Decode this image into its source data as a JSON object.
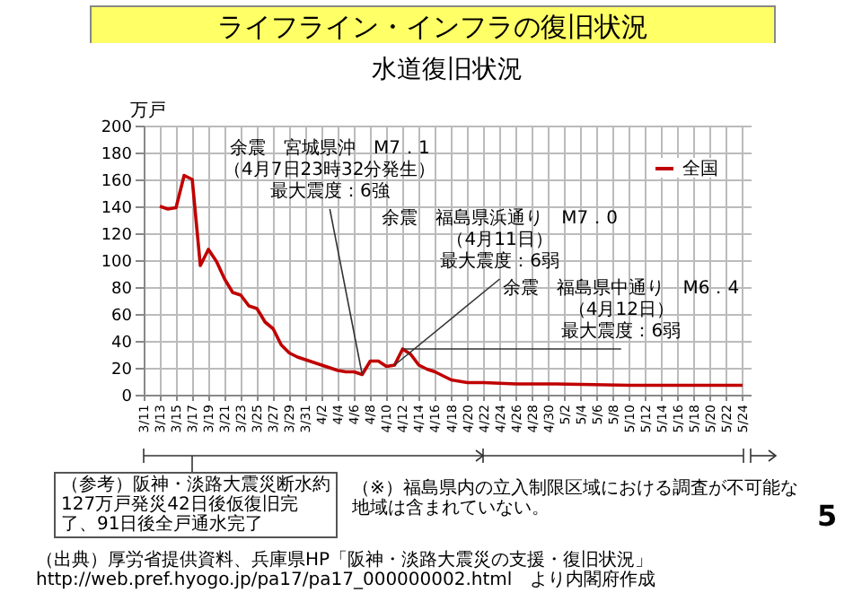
{
  "chart_data": {
    "type": "line",
    "title": "ライフライン・インフラの復旧状況",
    "subtitle": "水道復旧状況",
    "ylabel": "万戸",
    "x": [
      "--03-13",
      "--03-14",
      "--03-15",
      "--03-16",
      "--03-17",
      "--03-18",
      "--03-19",
      "--03-20",
      "--03-21",
      "--03-22",
      "--03-23",
      "--03-24",
      "--03-25",
      "--03-26",
      "--03-27",
      "--03-28",
      "--03-29",
      "--03-30",
      "--03-31",
      "--04-01",
      "--04-02",
      "--04-03",
      "--04-04",
      "--04-05",
      "--04-06",
      "--04-07",
      "--04-08",
      "--04-09",
      "--04-10",
      "--04-11",
      "--04-12",
      "--04-13",
      "--04-14",
      "--04-15",
      "--04-16",
      "--04-17",
      "--04-18",
      "--04-19",
      "--04-20",
      "--04-22",
      "--04-26",
      "--05-01",
      "--05-10",
      "--05-24"
    ],
    "series": [
      {
        "name": "全国",
        "color": "#c00000",
        "values": [
          140,
          138,
          139,
          163,
          160,
          96,
          108,
          99,
          86,
          76,
          74,
          66,
          64,
          54,
          49,
          37,
          31,
          28,
          26,
          24,
          22,
          20,
          18,
          17,
          17,
          15,
          25,
          25,
          21,
          22,
          34,
          30,
          22,
          19,
          17,
          14,
          11,
          10,
          9,
          9,
          8,
          8,
          7,
          7
        ]
      }
    ],
    "xlim": [
      "--03-11",
      "--05-25"
    ],
    "xticks": [
      {
        "value": "--03-11",
        "label": "3/11"
      },
      {
        "value": "--03-13",
        "label": "3/13"
      },
      {
        "value": "--03-15",
        "label": "3/15"
      },
      {
        "value": "--03-17",
        "label": "3/17"
      },
      {
        "value": "--03-19",
        "label": "3/19"
      },
      {
        "value": "--03-21",
        "label": "3/21"
      },
      {
        "value": "--03-23",
        "label": "3/23"
      },
      {
        "value": "--03-25",
        "label": "3/25"
      },
      {
        "value": "--03-27",
        "label": "3/27"
      },
      {
        "value": "--03-29",
        "label": "3/29"
      },
      {
        "value": "--03-31",
        "label": "3/31"
      },
      {
        "value": "--04-02",
        "label": "4/2"
      },
      {
        "value": "--04-04",
        "label": "4/4"
      },
      {
        "value": "--04-06",
        "label": "4/6"
      },
      {
        "value": "--04-08",
        "label": "4/8"
      },
      {
        "value": "--04-10",
        "label": "4/10"
      },
      {
        "value": "--04-12",
        "label": "4/12"
      },
      {
        "value": "--04-14",
        "label": "4/14"
      },
      {
        "value": "--04-16",
        "label": "4/16"
      },
      {
        "value": "--04-18",
        "label": "4/18"
      },
      {
        "value": "--04-20",
        "label": "4/20"
      },
      {
        "value": "--04-22",
        "label": "4/22"
      },
      {
        "value": "--04-24",
        "label": "4/24"
      },
      {
        "value": "--04-26",
        "label": "4/26"
      },
      {
        "value": "--04-28",
        "label": "4/28"
      },
      {
        "value": "--04-30",
        "label": "4/30"
      },
      {
        "value": "--05-02",
        "label": "5/2"
      },
      {
        "value": "--05-04",
        "label": "5/4"
      },
      {
        "value": "--05-06",
        "label": "5/6"
      },
      {
        "value": "--05-08",
        "label": "5/8"
      },
      {
        "value": "--05-10",
        "label": "5/10"
      },
      {
        "value": "--05-12",
        "label": "5/12"
      },
      {
        "value": "--05-14",
        "label": "5/14"
      },
      {
        "value": "--05-16",
        "label": "5/16"
      },
      {
        "value": "--05-18",
        "label": "5/18"
      },
      {
        "value": "--05-20",
        "label": "5/20"
      },
      {
        "value": "--05-22",
        "label": "5/22"
      },
      {
        "value": "--05-24",
        "label": "5/24"
      }
    ],
    "ylim": [
      0,
      200
    ],
    "yticks": [
      0,
      20,
      40,
      60,
      80,
      100,
      120,
      140,
      160,
      180,
      200
    ],
    "grid": true,
    "legend": "top right",
    "marker": "none",
    "line_style": "solid",
    "annotations": [
      {
        "text": "余震　宮城県沖　M7．1（4月7日23時32分発生）最大震度：6強",
        "x": "--04-07",
        "y": 15
      },
      {
        "text": "余震　福島県浜通り　M7．0（4月11日）最大震度：6弱",
        "x": "--04-11",
        "y": 22
      },
      {
        "text": "余震　福島県中通り　M6．4（4月12日）最大震度：6弱",
        "x": "--04-12",
        "y": 34
      },
      "（参考）阪神・淡路大震災断水約127万戸発災42日後仮復旧完了、91日後全戸通水完了",
      "（※）福島県内の立入制限区域における調査が不可能な地域は含まれていない。",
      "（出典）厚労省提供資料、兵庫県HP「阪神・淡路大震災の支援・復旧状況」http://web.pref.hyogo.jp/pa17/pa17_000000002.html　より内閣府作成",
      "5"
    ]
  }
}
